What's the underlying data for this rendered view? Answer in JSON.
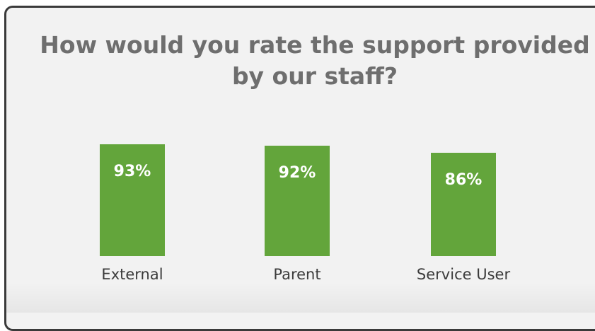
{
  "chart_data": {
    "type": "bar",
    "title": "How would you rate the support provided by our staff?",
    "categories": [
      "External",
      "Parent",
      "Service User"
    ],
    "values": [
      93,
      92,
      86
    ],
    "value_labels": [
      "93%",
      "92%",
      "86%"
    ],
    "ylim": [
      0,
      100
    ],
    "grid": false,
    "bar_color": "#63a53b"
  }
}
